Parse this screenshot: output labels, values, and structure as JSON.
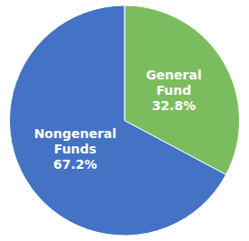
{
  "chart_data": {
    "type": "pie",
    "categories": [
      "General\nFund",
      "Nongeneral\nFunds"
    ],
    "values": [
      32.8,
      67.2
    ],
    "value_labels": [
      "32.8%",
      "67.2%"
    ],
    "colors": [
      "#7BBD5E",
      "#4472C4"
    ],
    "data_labels": true
  }
}
